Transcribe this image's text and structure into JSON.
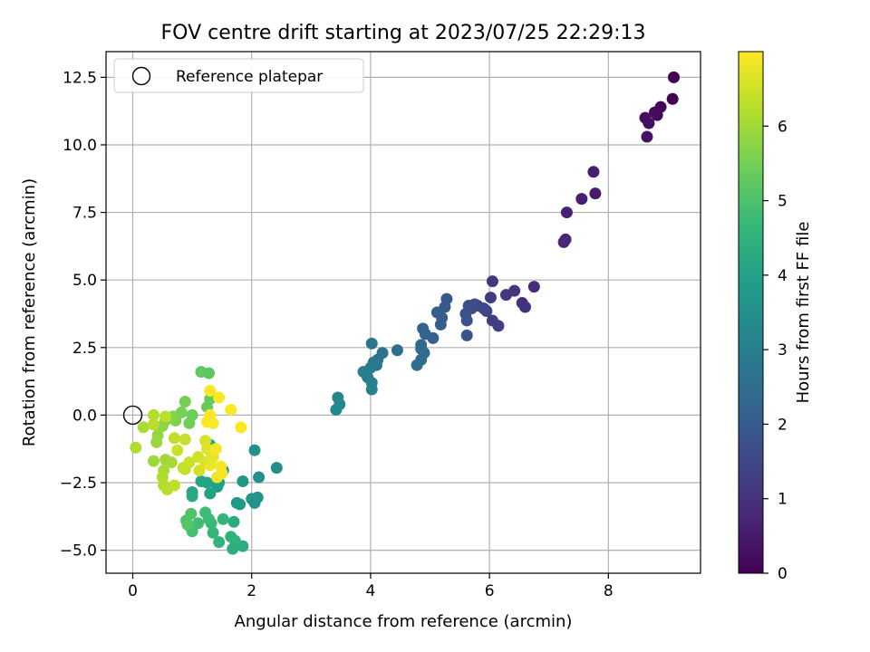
{
  "chart_data": {
    "type": "scatter",
    "title": "FOV centre drift starting at 2023/07/25 22:29:13",
    "xlabel": "Angular distance from reference (arcmin)",
    "ylabel": "Rotation from reference (arcmin)",
    "xlim": [
      -0.45,
      9.55
    ],
    "ylim": [
      -5.85,
      13.45
    ],
    "xticks": [
      0,
      2,
      4,
      6,
      8
    ],
    "yticks": [
      -5.0,
      -2.5,
      0.0,
      2.5,
      5.0,
      7.5,
      10.0,
      12.5
    ],
    "xtick_labels": [
      "0",
      "2",
      "4",
      "6",
      "8"
    ],
    "ytick_labels": [
      "−5.0",
      "−2.5",
      "0.0",
      "2.5",
      "5.0",
      "7.5",
      "10.0",
      "12.5"
    ],
    "grid": true,
    "legend": {
      "placement": "top-left",
      "entries": [
        {
          "label": "Reference platepar",
          "marker": "open-circle"
        }
      ]
    },
    "reference_point": {
      "x": 0,
      "y": 0
    },
    "colorbar": {
      "label": "Hours from first FF file",
      "colormap": "viridis",
      "range": [
        0,
        7.0
      ],
      "ticks": [
        0,
        1,
        2,
        3,
        4,
        5,
        6
      ],
      "tick_labels": [
        "0",
        "1",
        "2",
        "3",
        "4",
        "5",
        "6"
      ]
    },
    "colormap_stops": [
      "#440154",
      "#482878",
      "#3e4a89",
      "#31688e",
      "#26828e",
      "#1f9e89",
      "#35b779",
      "#6ece58",
      "#b5de2b",
      "#fde725"
    ],
    "series": [
      {
        "points": [
          [
            9.1,
            12.5,
            0.0
          ],
          [
            9.08,
            11.7,
            0.05
          ],
          [
            8.88,
            11.4,
            0.1
          ],
          [
            8.82,
            11.1,
            0.15
          ],
          [
            8.78,
            11.2,
            0.2
          ],
          [
            8.62,
            11.0,
            0.25
          ],
          [
            8.68,
            10.8,
            0.3
          ],
          [
            8.65,
            10.3,
            0.35
          ],
          [
            7.78,
            8.2,
            0.5
          ],
          [
            7.75,
            9.0,
            0.55
          ],
          [
            7.55,
            8.0,
            0.6
          ],
          [
            7.3,
            7.5,
            0.65
          ],
          [
            7.28,
            6.5,
            0.7
          ],
          [
            7.25,
            6.4,
            0.75
          ],
          [
            6.75,
            4.75,
            0.9
          ],
          [
            6.55,
            4.15,
            0.95
          ],
          [
            6.6,
            4.0,
            1.0
          ],
          [
            6.42,
            4.6,
            1.05
          ],
          [
            6.28,
            4.45,
            1.1
          ],
          [
            6.05,
            4.95,
            1.15
          ],
          [
            6.02,
            4.35,
            1.2
          ],
          [
            6.05,
            3.5,
            1.25
          ],
          [
            6.15,
            3.3,
            1.3
          ],
          [
            5.95,
            3.85,
            1.4
          ],
          [
            5.9,
            3.95,
            1.45
          ],
          [
            5.8,
            4.05,
            1.5
          ],
          [
            5.75,
            4.1,
            1.55
          ],
          [
            5.7,
            3.95,
            1.6
          ],
          [
            5.65,
            4.05,
            1.65
          ],
          [
            5.6,
            3.75,
            1.7
          ],
          [
            5.62,
            3.5,
            1.75
          ],
          [
            5.62,
            2.95,
            1.8
          ],
          [
            5.28,
            4.3,
            1.9
          ],
          [
            5.25,
            4.0,
            1.95
          ],
          [
            5.2,
            3.6,
            2.0
          ],
          [
            5.18,
            3.35,
            2.05
          ],
          [
            5.12,
            3.8,
            2.1
          ],
          [
            5.05,
            2.85,
            2.15
          ],
          [
            4.88,
            3.2,
            2.2
          ],
          [
            4.92,
            3.0,
            2.25
          ],
          [
            4.85,
            2.6,
            2.3
          ],
          [
            4.85,
            2.45,
            2.35
          ],
          [
            4.9,
            2.3,
            2.4
          ],
          [
            4.85,
            2.05,
            2.45
          ],
          [
            4.78,
            1.85,
            2.5
          ],
          [
            4.45,
            2.4,
            2.55
          ],
          [
            4.2,
            2.3,
            2.6
          ],
          [
            4.12,
            2.05,
            2.65
          ],
          [
            4.02,
            2.65,
            2.7
          ],
          [
            4.05,
            1.95,
            2.75
          ],
          [
            4.1,
            1.85,
            2.8
          ],
          [
            4.0,
            1.75,
            2.85
          ],
          [
            3.95,
            1.4,
            2.9
          ],
          [
            3.92,
            1.55,
            2.95
          ],
          [
            3.88,
            1.6,
            3.0
          ],
          [
            4.02,
            1.2,
            3.05
          ],
          [
            4.02,
            0.95,
            3.1
          ],
          [
            3.45,
            0.65,
            3.2
          ],
          [
            3.48,
            0.4,
            3.25
          ],
          [
            3.42,
            0.2,
            3.3
          ],
          [
            2.42,
            -1.95,
            3.4
          ],
          [
            2.12,
            -2.3,
            3.45
          ],
          [
            2.05,
            -1.3,
            3.5
          ],
          [
            2.1,
            -3.05,
            3.55
          ],
          [
            2.05,
            -3.25,
            3.6
          ],
          [
            2.0,
            -3.1,
            3.65
          ],
          [
            1.85,
            -2.45,
            3.7
          ],
          [
            1.75,
            -3.25,
            3.75
          ],
          [
            1.8,
            -3.3,
            3.8
          ],
          [
            1.52,
            -2.05,
            3.85
          ],
          [
            1.45,
            -2.5,
            3.9
          ],
          [
            1.42,
            -2.65,
            3.95
          ],
          [
            1.3,
            -2.9,
            4.0
          ],
          [
            1.25,
            -2.5,
            4.05
          ],
          [
            1.15,
            -2.45,
            4.1
          ],
          [
            1.0,
            -2.85,
            4.15
          ],
          [
            1.0,
            -3.0,
            4.2
          ],
          [
            1.3,
            -1.1,
            4.25
          ],
          [
            1.7,
            -3.95,
            4.3
          ],
          [
            1.85,
            -4.85,
            4.35
          ],
          [
            1.68,
            -4.95,
            4.4
          ],
          [
            1.72,
            -4.65,
            4.45
          ],
          [
            1.65,
            -4.5,
            4.5
          ],
          [
            1.45,
            -4.7,
            4.55
          ],
          [
            1.52,
            -3.85,
            4.6
          ],
          [
            1.35,
            -4.35,
            4.65
          ],
          [
            1.32,
            -4.0,
            4.7
          ],
          [
            1.28,
            -3.85,
            4.75
          ],
          [
            1.22,
            -3.6,
            4.8
          ],
          [
            1.1,
            -4.0,
            4.85
          ],
          [
            1.0,
            -4.3,
            4.9
          ],
          [
            0.95,
            -4.1,
            4.95
          ],
          [
            0.9,
            -3.9,
            5.0
          ],
          [
            0.98,
            -3.65,
            5.05
          ],
          [
            0.92,
            -4.05,
            5.1
          ],
          [
            1.28,
            1.55,
            5.2
          ],
          [
            1.15,
            1.6,
            5.25
          ],
          [
            1.3,
            0.6,
            5.3
          ],
          [
            1.25,
            0.3,
            5.35
          ],
          [
            1.0,
            0.0,
            5.4
          ],
          [
            0.95,
            -0.3,
            5.45
          ],
          [
            0.88,
            0.5,
            5.5
          ],
          [
            0.82,
            0.1,
            5.55
          ],
          [
            0.72,
            -0.2,
            5.6
          ],
          [
            0.68,
            -0.05,
            5.65
          ],
          [
            0.62,
            -0.1,
            5.7
          ],
          [
            0.55,
            -0.2,
            5.75
          ],
          [
            0.5,
            -0.4,
            5.8
          ],
          [
            0.42,
            -0.75,
            5.85
          ],
          [
            0.4,
            -1.0,
            5.9
          ],
          [
            0.35,
            -1.7,
            5.95
          ],
          [
            0.55,
            -1.65,
            6.0
          ],
          [
            0.65,
            -1.75,
            6.05
          ],
          [
            0.52,
            -2.05,
            6.1
          ],
          [
            0.5,
            -2.3,
            6.15
          ],
          [
            0.52,
            -2.6,
            6.2
          ],
          [
            0.58,
            -2.75,
            6.25
          ],
          [
            0.7,
            -2.6,
            6.3
          ],
          [
            0.85,
            -1.95,
            6.35
          ],
          [
            0.88,
            -2.0,
            6.4
          ],
          [
            0.95,
            -1.75,
            6.45
          ],
          [
            1.1,
            -1.55,
            6.5
          ],
          [
            1.12,
            -2.05,
            6.55
          ],
          [
            1.22,
            -1.75,
            6.6
          ],
          [
            0.18,
            -0.45,
            6.1
          ],
          [
            0.05,
            -1.2,
            6.15
          ],
          [
            0.35,
            0.0,
            6.2
          ],
          [
            0.35,
            -0.35,
            6.25
          ],
          [
            0.55,
            -0.05,
            6.3
          ],
          [
            0.7,
            -0.85,
            6.35
          ],
          [
            0.88,
            -0.9,
            6.4
          ],
          [
            0.75,
            -1.3,
            6.45
          ],
          [
            1.22,
            -0.95,
            6.6
          ],
          [
            1.25,
            -1.25,
            6.65
          ],
          [
            1.32,
            -1.4,
            6.7
          ],
          [
            1.35,
            -1.55,
            6.75
          ],
          [
            1.3,
            -1.85,
            6.8
          ],
          [
            1.42,
            -2.3,
            6.85
          ],
          [
            1.5,
            -2.15,
            6.9
          ],
          [
            1.48,
            -1.9,
            6.92
          ],
          [
            1.4,
            -1.25,
            6.95
          ],
          [
            1.25,
            -0.25,
            6.96
          ],
          [
            1.35,
            -0.3,
            6.97
          ],
          [
            1.3,
            0.0,
            6.98
          ],
          [
            1.45,
            0.65,
            6.99
          ],
          [
            1.3,
            0.9,
            6.99
          ],
          [
            1.65,
            0.2,
            6.99
          ],
          [
            1.82,
            -0.45,
            6.99
          ]
        ]
      }
    ]
  }
}
